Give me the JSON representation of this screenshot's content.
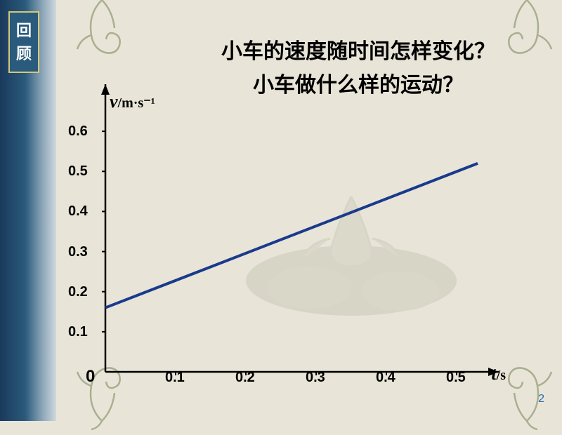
{
  "sidebar": {
    "line1": "回",
    "line2": "顾"
  },
  "title": {
    "line1": "小车的速度随时间怎样变化？",
    "line2": "小车做什么样的运动？"
  },
  "chart": {
    "type": "line",
    "ylabel_var": "v",
    "ylabel_unit": "/m·s⁻¹",
    "xlabel_var": "t",
    "xlabel_unit": "/s",
    "origin_label": "0",
    "yticks": [
      "0.1",
      "0.2",
      "0.3",
      "0.4",
      "0.5",
      "0.6"
    ],
    "xticks": [
      "0.1",
      "0.2",
      "0.3",
      "0.4",
      "0.5"
    ],
    "ylim": [
      0,
      0.7
    ],
    "xlim": [
      0,
      0.55
    ],
    "line_start": {
      "x": 0,
      "y": 0.16
    },
    "line_end": {
      "x": 0.53,
      "y": 0.52
    },
    "line_color": "#1a3a8c",
    "line_width": 4,
    "axis_color": "#000",
    "axis_width": 2.5,
    "background_color": "#e8e5d8"
  },
  "page_number": "2"
}
